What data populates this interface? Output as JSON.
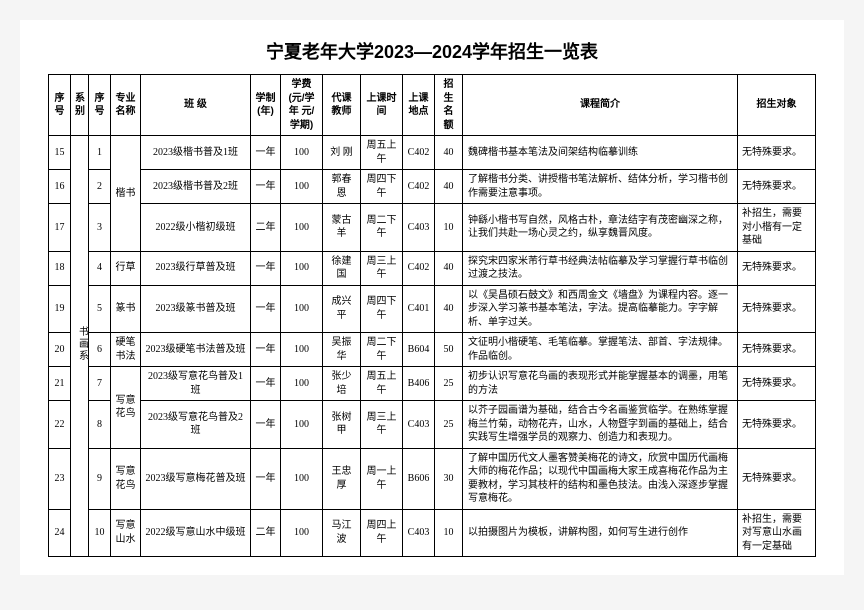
{
  "title": "宁夏老年大学2023—2024学年招生一览表",
  "headers": {
    "seq": "序号",
    "dept": "系别",
    "seq2": "序号",
    "major": "专业名称",
    "class": "班  级",
    "duration": "学制(年)",
    "fee": "学费(元/学年 元/学期)",
    "teacher": "代课教师",
    "time": "上课时间",
    "location": "上课地点",
    "quota": "招生名额",
    "desc": "课程简介",
    "target": "招生对象"
  },
  "dept_name": "书画系",
  "rows": [
    {
      "seq": "15",
      "seq2": "1",
      "major": "楷书",
      "class": "2023级楷书普及1班",
      "duration": "一年",
      "fee": "100",
      "teacher": "刘  刚",
      "time": "周五上午",
      "location": "C402",
      "quota": "40",
      "desc": "魏碑楷书基本笔法及间架结构临摹训练",
      "target": "无特殊要求。"
    },
    {
      "seq": "16",
      "seq2": "2",
      "major": "",
      "class": "2023级楷书普及2班",
      "duration": "一年",
      "fee": "100",
      "teacher": "郭春恩",
      "time": "周四下午",
      "location": "C402",
      "quota": "40",
      "desc": "了解楷书分类、讲授楷书笔法解析、结体分析，学习楷书创作需要注意事项。",
      "target": "无特殊要求。"
    },
    {
      "seq": "17",
      "seq2": "3",
      "major": "",
      "class": "2022级小楷初级班",
      "duration": "二年",
      "fee": "100",
      "teacher": "蒙古羊",
      "time": "周二下午",
      "location": "C403",
      "quota": "10",
      "desc": "钟繇小楷书写自然，风格古朴，章法结字有茂密幽深之称，让我们共赴一场心灵之约，纵享魏晋风度。",
      "target": "补招生，需要对小楷有一定基础"
    },
    {
      "seq": "18",
      "seq2": "4",
      "major": "行草",
      "class": "2023级行草普及班",
      "duration": "一年",
      "fee": "100",
      "teacher": "徐建国",
      "time": "周三上午",
      "location": "C402",
      "quota": "40",
      "desc": "探究宋四家米芾行草书经典法帖临摹及学习掌握行草书临创过渡之技法。",
      "target": "无特殊要求。"
    },
    {
      "seq": "19",
      "seq2": "5",
      "major": "篆书",
      "class": "2023级篆书普及班",
      "duration": "一年",
      "fee": "100",
      "teacher": "成兴平",
      "time": "周四下午",
      "location": "C401",
      "quota": "40",
      "desc": "以《吴昌硕石鼓文》和西周金文《墙盘》为课程内容。逐一步深入学习篆书基本笔法，字法。提高临摹能力。字字解析、单字过关。",
      "target": "无特殊要求。"
    },
    {
      "seq": "20",
      "seq2": "6",
      "major": "硬笔书法",
      "class": "2023级硬笔书法普及班",
      "duration": "一年",
      "fee": "100",
      "teacher": "吴振华",
      "time": "周二下午",
      "location": "B604",
      "quota": "50",
      "desc": "文征明小楷硬笔、毛笔临摹。掌握笔法、部首、字法规律。作品临创。",
      "target": "无特殊要求。"
    },
    {
      "seq": "21",
      "seq2": "7",
      "major": "写意花鸟",
      "class": "2023级写意花鸟普及1班",
      "duration": "一年",
      "fee": "100",
      "teacher": "张少培",
      "time": "周五上午",
      "location": "B406",
      "quota": "25",
      "desc": "初步认识写意花鸟画的表现形式并能掌握基本的调墨，用笔的方法",
      "target": "无特殊要求。"
    },
    {
      "seq": "22",
      "seq2": "8",
      "major": "",
      "class": "2023级写意花鸟普及2班",
      "duration": "一年",
      "fee": "100",
      "teacher": "张树甲",
      "time": "周三上午",
      "location": "C403",
      "quota": "25",
      "desc": "以芥子园画谱为基础，结合古今名画鉴赏临学。在熟练掌握梅兰竹菊，动物花卉，山水，人物暨字到画的基础上，结合实践写生增强学员的观察力、创造力和表现力。",
      "target": "无特殊要求。"
    },
    {
      "seq": "23",
      "seq2": "9",
      "major": "写意花鸟",
      "class": "2023级写意梅花普及班",
      "duration": "一年",
      "fee": "100",
      "teacher": "王忠厚",
      "time": "周一上午",
      "location": "B606",
      "quota": "30",
      "desc": "了解中国历代文人墨客赞美梅花的诗文，欣赏中国历代画梅大师的梅花作品；以现代中国画梅大家王成喜梅花作品为主要教材，学习其枝杆的结构和墨色技法。由浅入深逐步掌握写意梅花。",
      "target": "无特殊要求。"
    },
    {
      "seq": "24",
      "seq2": "10",
      "major": "写意山水",
      "class": "2022级写意山水中级班",
      "duration": "二年",
      "fee": "100",
      "teacher": "马江波",
      "time": "周四上午",
      "location": "C403",
      "quota": "10",
      "desc": "以拍摄图片为模板，讲解构图，如何写生进行创作",
      "target": "补招生，需要对写意山水画有一定基础"
    }
  ]
}
